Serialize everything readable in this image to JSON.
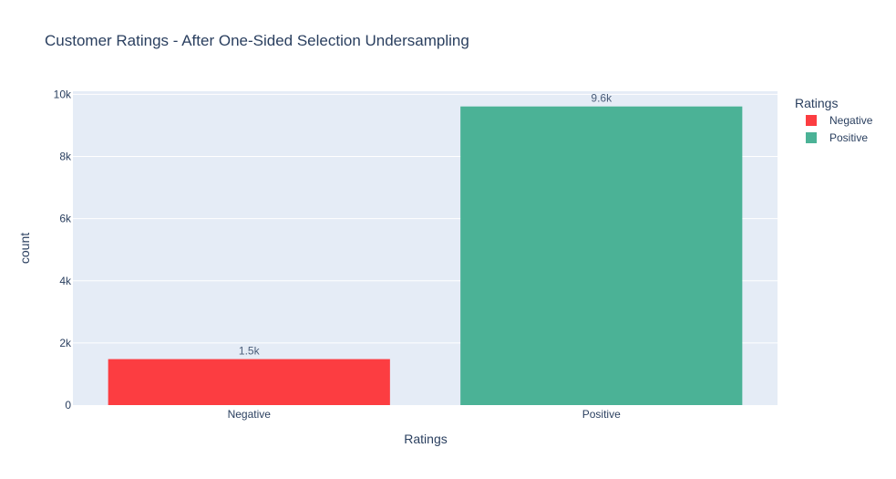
{
  "chart_data": {
    "type": "bar",
    "title": "Customer Ratings - After One-Sided Selection Undersampling",
    "xlabel": "Ratings",
    "ylabel": "count",
    "categories": [
      "Negative",
      "Positive"
    ],
    "values": [
      1480,
      9610
    ],
    "data_labels": [
      "1.5k",
      "9.6k"
    ],
    "colors": [
      "#fc3d41",
      "#4bb296"
    ],
    "ylim": [
      0,
      10100
    ],
    "yticks": [
      0,
      2000,
      4000,
      6000,
      8000,
      10000
    ],
    "ytick_labels": [
      "0",
      "2k",
      "4k",
      "6k",
      "8k",
      "10k"
    ],
    "grid": true,
    "legend": {
      "title": "Ratings",
      "placement": "top-right",
      "entries": [
        "Negative",
        "Positive"
      ]
    }
  }
}
